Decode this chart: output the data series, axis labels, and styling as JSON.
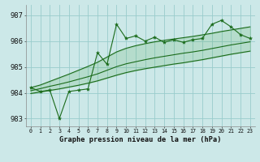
{
  "title": "Graphe pression niveau de la mer (hPa)",
  "x_labels": [
    "0",
    "1",
    "2",
    "3",
    "4",
    "5",
    "6",
    "7",
    "8",
    "9",
    "10",
    "11",
    "12",
    "13",
    "14",
    "15",
    "16",
    "17",
    "18",
    "19",
    "20",
    "21",
    "22",
    "23"
  ],
  "ylim": [
    982.7,
    987.4
  ],
  "yticks": [
    983,
    984,
    985,
    986,
    987
  ],
  "background_color": "#cce8e8",
  "grid_color": "#99cccc",
  "line_color": "#1a6b1a",
  "fill_color": "#4da64d",
  "main_data": [
    984.2,
    984.05,
    984.1,
    983.0,
    984.05,
    984.1,
    984.15,
    985.55,
    985.1,
    986.65,
    986.1,
    986.2,
    986.0,
    986.15,
    985.95,
    986.05,
    985.95,
    986.05,
    986.1,
    986.65,
    986.8,
    986.55,
    986.25,
    986.1
  ],
  "upper_line": [
    984.2,
    984.3,
    984.44,
    984.58,
    984.72,
    984.87,
    985.02,
    985.18,
    985.38,
    985.58,
    985.72,
    985.82,
    985.9,
    985.97,
    986.03,
    986.08,
    986.13,
    986.18,
    986.24,
    986.3,
    986.37,
    986.43,
    986.49,
    986.55
  ],
  "mid_line": [
    984.08,
    984.16,
    984.25,
    984.33,
    984.42,
    984.52,
    984.62,
    984.73,
    984.87,
    985.01,
    985.12,
    985.2,
    985.28,
    985.35,
    985.41,
    985.47,
    985.53,
    985.58,
    985.64,
    985.71,
    985.78,
    985.85,
    985.91,
    985.97
  ],
  "lower_line": [
    983.97,
    984.03,
    984.09,
    984.15,
    984.22,
    984.29,
    984.37,
    984.46,
    984.57,
    984.68,
    984.78,
    984.86,
    984.93,
    984.99,
    985.05,
    985.11,
    985.16,
    985.22,
    985.28,
    985.35,
    985.42,
    985.49,
    985.55,
    985.61
  ]
}
